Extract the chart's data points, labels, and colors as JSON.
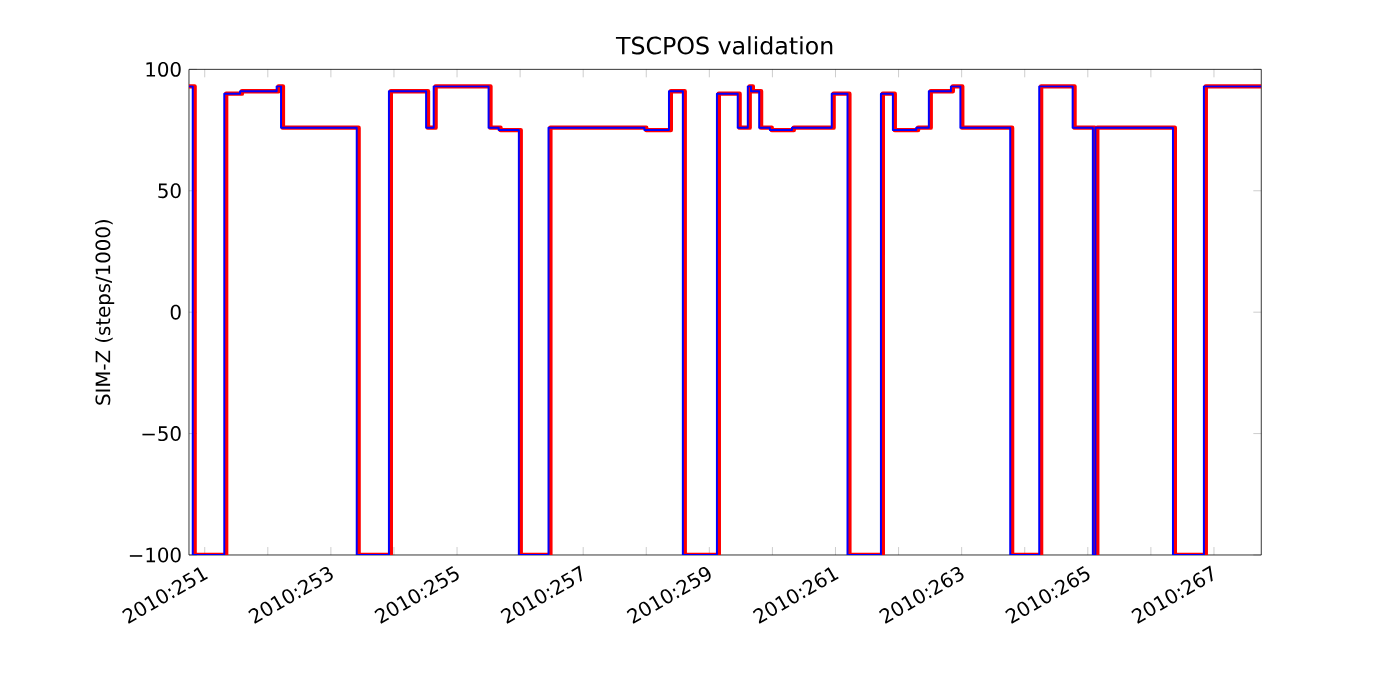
{
  "chart_data": {
    "type": "step",
    "title": "TSCPOS validation",
    "ylabel": "SIM-Z (steps/1000)",
    "xlim": [
      "2010-09-07T18:00",
      "2010-09-24T18:00"
    ],
    "ylim": [
      -100,
      100
    ],
    "xticks": [
      {
        "value": "2010-09-08",
        "label": "2010:251"
      },
      {
        "value": "2010-09-09",
        "label": null
      },
      {
        "value": "2010-09-10",
        "label": "2010:253"
      },
      {
        "value": "2010-09-11",
        "label": null
      },
      {
        "value": "2010-09-12",
        "label": "2010:255"
      },
      {
        "value": "2010-09-13",
        "label": null
      },
      {
        "value": "2010-09-14",
        "label": "2010:257"
      },
      {
        "value": "2010-09-15",
        "label": null
      },
      {
        "value": "2010-09-16",
        "label": "2010:259"
      },
      {
        "value": "2010-09-17",
        "label": null
      },
      {
        "value": "2010-09-18",
        "label": "2010:261"
      },
      {
        "value": "2010-09-19",
        "label": null
      },
      {
        "value": "2010-09-20",
        "label": "2010:263"
      },
      {
        "value": "2010-09-21",
        "label": null
      },
      {
        "value": "2010-09-22",
        "label": "2010:265"
      },
      {
        "value": "2010-09-23",
        "label": null
      },
      {
        "value": "2010-09-24",
        "label": "2010:267"
      }
    ],
    "yticks": [
      {
        "value": -100,
        "label": "−100"
      },
      {
        "value": -50,
        "label": "−50"
      },
      0,
      50,
      100
    ],
    "grid": false,
    "marker": "none",
    "line_style": "solid",
    "series": [
      {
        "color": "#ff0000",
        "x": [
          "2010-09-07T18:00",
          "2010-09-07T20:09",
          "2010-09-08T08:09",
          "2010-09-08T14:09",
          "2010-09-09T04:05",
          "2010-09-09T05:45",
          "2010-09-10T10:33",
          "2010-09-10T22:48",
          "2010-09-11T12:57",
          "2010-09-11T15:50",
          "2010-09-12T12:43",
          "2010-09-12T16:33",
          "2010-09-13T00:14",
          "2010-09-13T11:31",
          "2010-09-15T00:00",
          "2010-09-15T09:21",
          "2010-09-15T14:38",
          "2010-09-16T03:36",
          "2010-09-16T11:31",
          "2010-09-16T15:21",
          "2010-09-16T16:33",
          "2010-09-16T19:41",
          "2010-09-16T23:45",
          "2010-09-17T08:09",
          "2010-09-17T23:17",
          "2010-09-18T05:17",
          "2010-09-18T18:00",
          "2010-09-18T22:33",
          "2010-09-19T07:26",
          "2010-09-19T12:14",
          "2010-09-19T20:38",
          "2010-09-20T00:14",
          "2010-09-20T19:12",
          "2010-09-21T06:14",
          "2010-09-21T18:57",
          "2010-09-22T02:38",
          "2010-09-22T03:36",
          "2010-09-23T09:07",
          "2010-09-23T20:53",
          "2010-09-24T18:00"
        ],
        "values": [
          93,
          -100,
          90,
          91,
          93,
          76,
          -100,
          91,
          76,
          93,
          76,
          75,
          -100,
          76,
          75,
          91,
          -100,
          90,
          76,
          93,
          91,
          76,
          75,
          76,
          90,
          -100,
          90,
          75,
          76,
          91,
          93,
          76,
          -100,
          93,
          76,
          -100,
          76,
          -100,
          93,
          93
        ]
      },
      {
        "color": "#0000ff",
        "x": [
          "2010-09-07T18:00",
          "2010-09-07T19:26",
          "2010-09-08T07:26",
          "2010-09-08T13:26",
          "2010-09-09T03:22",
          "2010-09-09T05:02",
          "2010-09-10T09:50",
          "2010-09-10T22:05",
          "2010-09-11T12:14",
          "2010-09-11T15:07",
          "2010-09-12T12:00",
          "2010-09-12T15:50",
          "2010-09-12T23:31",
          "2010-09-13T10:48",
          "2010-09-14T23:17",
          "2010-09-15T08:38",
          "2010-09-15T13:55",
          "2010-09-16T02:53",
          "2010-09-16T10:48",
          "2010-09-16T14:38",
          "2010-09-16T15:50",
          "2010-09-16T18:58",
          "2010-09-16T23:02",
          "2010-09-17T07:26",
          "2010-09-17T22:34",
          "2010-09-18T04:34",
          "2010-09-18T17:17",
          "2010-09-18T21:50",
          "2010-09-19T06:43",
          "2010-09-19T11:31",
          "2010-09-19T19:55",
          "2010-09-19T23:31",
          "2010-09-20T18:29",
          "2010-09-21T05:31",
          "2010-09-21T18:14",
          "2010-09-22T01:55",
          "2010-09-22T02:53",
          "2010-09-23T08:24",
          "2010-09-23T20:10",
          "2010-09-24T18:00"
        ],
        "values": [
          93,
          -100,
          90,
          91,
          93,
          76,
          -100,
          91,
          76,
          93,
          76,
          75,
          -100,
          76,
          75,
          91,
          -100,
          90,
          76,
          93,
          91,
          76,
          75,
          76,
          90,
          -100,
          90,
          75,
          76,
          91,
          93,
          76,
          -100,
          93,
          76,
          -100,
          76,
          -100,
          93,
          93
        ]
      }
    ]
  }
}
